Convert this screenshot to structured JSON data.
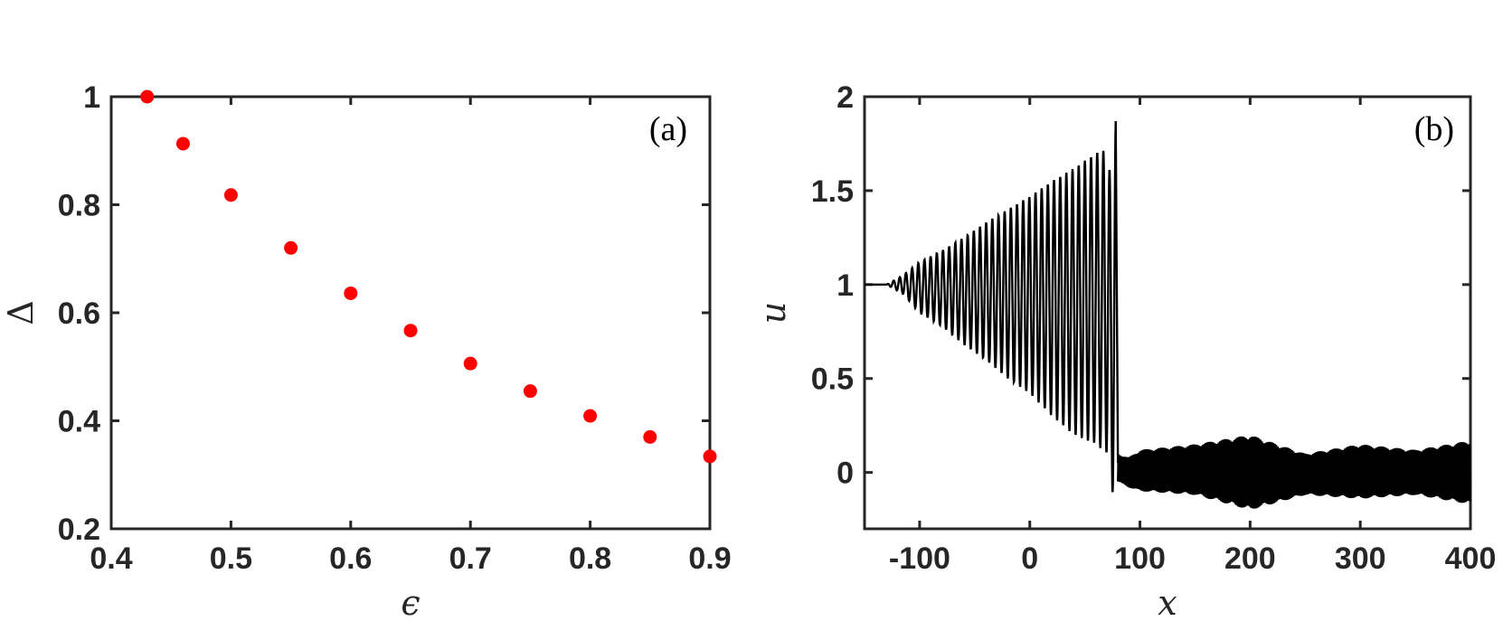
{
  "chart_data": [
    {
      "type": "scatter",
      "panel_label": "(a)",
      "xlabel": "ϵ",
      "ylabel": "Δ",
      "xlim": [
        0.4,
        0.9
      ],
      "ylim": [
        0.2,
        1
      ],
      "xticks": [
        "0.4",
        "0.5",
        "0.6",
        "0.7",
        "0.8",
        "0.9"
      ],
      "yticks": [
        "0.2",
        "0.4",
        "0.6",
        "0.8",
        "1"
      ],
      "grid": false,
      "marker_color": "#ff0000",
      "points": [
        {
          "x": 0.43,
          "y": 1.0
        },
        {
          "x": 0.46,
          "y": 0.913
        },
        {
          "x": 0.5,
          "y": 0.818
        },
        {
          "x": 0.55,
          "y": 0.72
        },
        {
          "x": 0.6,
          "y": 0.636
        },
        {
          "x": 0.65,
          "y": 0.567
        },
        {
          "x": 0.7,
          "y": 0.506
        },
        {
          "x": 0.75,
          "y": 0.455
        },
        {
          "x": 0.8,
          "y": 0.409
        },
        {
          "x": 0.85,
          "y": 0.37
        },
        {
          "x": 0.9,
          "y": 0.334
        }
      ]
    },
    {
      "type": "line",
      "panel_label": "(b)",
      "xlabel": "x",
      "ylabel": "u",
      "xlim": [
        -150,
        400
      ],
      "ylim": [
        -0.3,
        2
      ],
      "xticks": [
        "-100",
        "0",
        "100",
        "200",
        "300",
        "400"
      ],
      "yticks": [
        "0",
        "0.5",
        "1",
        "1.5",
        "2"
      ],
      "grid": false,
      "line_color": "#000000",
      "series": [
        {
          "x": [
            -150,
            -130,
            -115,
            -100,
            -80,
            -60,
            -40,
            -20,
            0,
            20,
            40,
            60,
            70,
            75,
            77,
            78,
            80,
            90,
            100,
            150,
            200,
            250,
            300,
            350,
            400
          ],
          "upper": [
            1.0,
            1.0,
            1.05,
            1.12,
            1.18,
            1.25,
            1.33,
            1.4,
            1.47,
            1.55,
            1.62,
            1.7,
            1.72,
            1.5,
            1.7,
            1.87,
            0.1,
            0.08,
            0.12,
            0.15,
            0.2,
            0.1,
            0.15,
            0.12,
            0.17
          ],
          "lower": [
            1.0,
            1.0,
            0.95,
            0.85,
            0.78,
            0.68,
            0.6,
            0.5,
            0.42,
            0.3,
            0.2,
            0.15,
            0.1,
            -0.12,
            0.0,
            0.0,
            -0.05,
            -0.08,
            -0.1,
            -0.12,
            -0.2,
            -0.12,
            -0.14,
            -0.12,
            -0.17
          ]
        }
      ]
    }
  ]
}
